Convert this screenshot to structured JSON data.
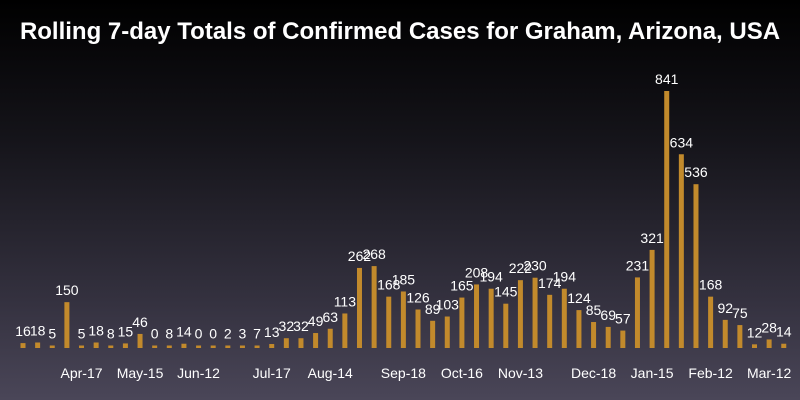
{
  "chart_data": {
    "type": "bar",
    "title": "Rolling 7-day Totals of Confirmed Cases for Graham, Arizona, USA",
    "xlabel": "",
    "ylabel": "",
    "values": [
      16,
      18,
      5,
      150,
      5,
      18,
      8,
      15,
      46,
      0,
      8,
      14,
      0,
      0,
      2,
      3,
      7,
      13,
      32,
      32,
      49,
      63,
      113,
      262,
      268,
      168,
      185,
      126,
      89,
      103,
      165,
      208,
      194,
      145,
      222,
      230,
      174,
      194,
      124,
      85,
      69,
      57,
      231,
      321,
      841,
      634,
      536,
      168,
      92,
      75,
      12,
      28,
      14
    ],
    "x_tick_labels": [
      {
        "bar_index": 4,
        "label": "Apr-17"
      },
      {
        "bar_index": 8,
        "label": "May-15"
      },
      {
        "bar_index": 12,
        "label": "Jun-12"
      },
      {
        "bar_index": 17,
        "label": "Jul-17"
      },
      {
        "bar_index": 21,
        "label": "Aug-14"
      },
      {
        "bar_index": 26,
        "label": "Sep-18"
      },
      {
        "bar_index": 30,
        "label": "Oct-16"
      },
      {
        "bar_index": 34,
        "label": "Nov-13"
      },
      {
        "bar_index": 39,
        "label": "Dec-18"
      },
      {
        "bar_index": 43,
        "label": "Jan-15"
      },
      {
        "bar_index": 47,
        "label": "Feb-12"
      },
      {
        "bar_index": 51,
        "label": "Mar-12"
      }
    ],
    "ylim": [
      0,
      841
    ],
    "bar_color": "#c28a2c",
    "data_labels": true,
    "legend": "none",
    "grid": false
  }
}
